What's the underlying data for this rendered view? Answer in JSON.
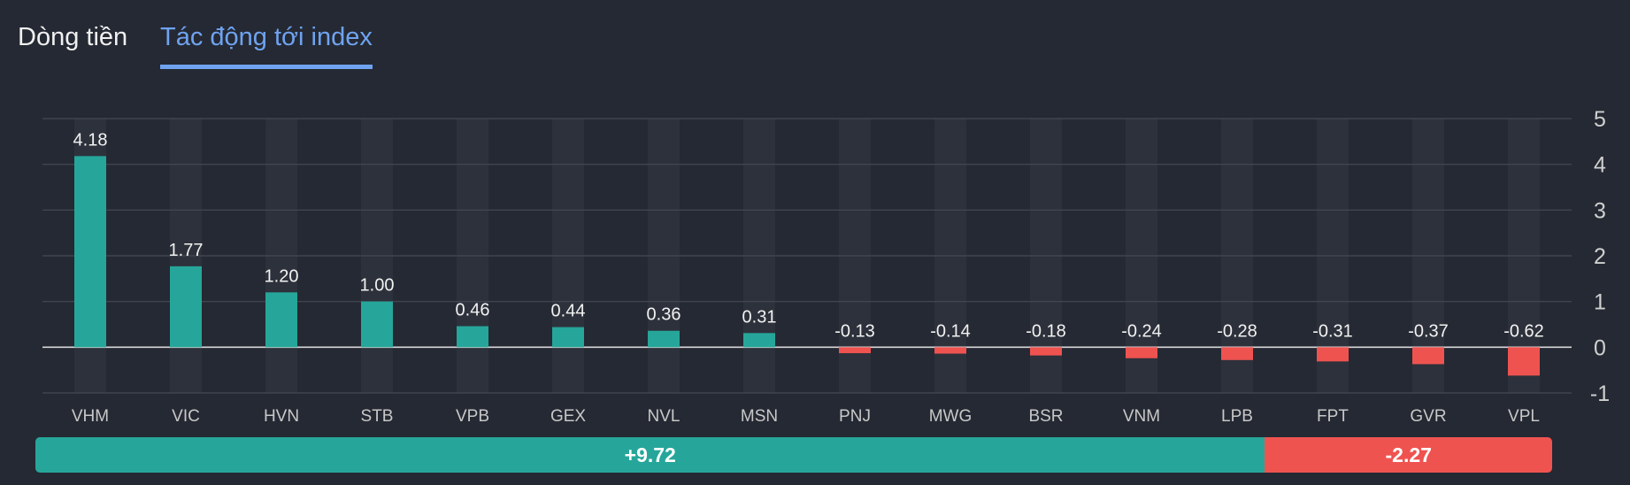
{
  "tabs": [
    {
      "label": "Dòng tiền",
      "active": false
    },
    {
      "label": "Tác động tới index",
      "active": true
    }
  ],
  "colors": {
    "positive": "#26a69a",
    "negative": "#ef5350",
    "active_tab": "#6fa3f0",
    "background": "#252933"
  },
  "chart_data": {
    "type": "bar",
    "categories": [
      "VHM",
      "VIC",
      "HVN",
      "STB",
      "VPB",
      "GEX",
      "NVL",
      "MSN",
      "PNJ",
      "MWG",
      "BSR",
      "VNM",
      "LPB",
      "FPT",
      "GVR",
      "VPL"
    ],
    "values": [
      4.18,
      1.77,
      1.2,
      1.0,
      0.46,
      0.44,
      0.36,
      0.31,
      -0.13,
      -0.14,
      -0.18,
      -0.24,
      -0.28,
      -0.31,
      -0.37,
      -0.62
    ],
    "value_labels": [
      "4.18",
      "1.77",
      "1.20",
      "1.00",
      "0.46",
      "0.44",
      "0.36",
      "0.31",
      "-0.13",
      "-0.14",
      "-0.18",
      "-0.24",
      "-0.28",
      "-0.31",
      "-0.37",
      "-0.62"
    ],
    "y_ticks": [
      5,
      4,
      3,
      2,
      1,
      0,
      -1
    ],
    "ylim": [
      -1,
      5
    ],
    "y_axis_position": "right",
    "grid": true
  },
  "summary": {
    "positive_total": 9.72,
    "negative_total": -2.27,
    "positive_label": "+9.72",
    "negative_label": "-2.27"
  }
}
